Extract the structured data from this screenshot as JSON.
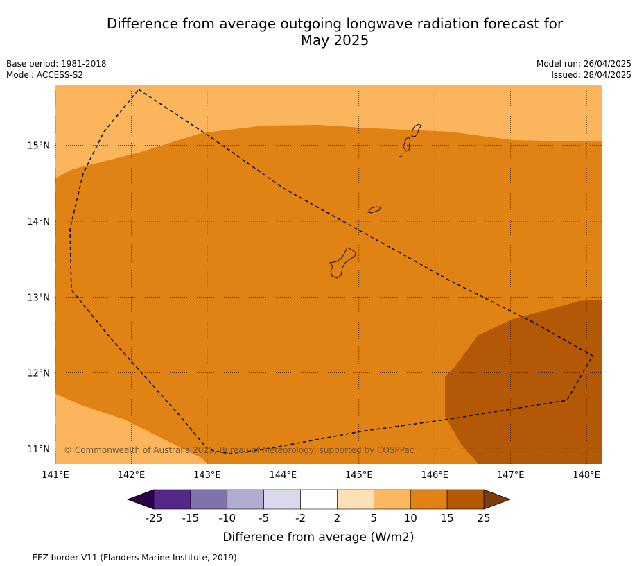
{
  "title_line1": "Difference from average outgoing longwave radiation forecast for",
  "title_line2": "May 2025",
  "base_period": "Base period: 1981-2018",
  "model": "Model: ACCESS-S2",
  "model_run": "Model run: 26/04/2025",
  "issued": "Issued: 28/04/2025",
  "copyright": "© Commonwealth of Australia 2025, Bureau of Meteorology, supported by COSPPac",
  "map": {
    "lon_range": [
      141,
      148.2
    ],
    "lat_range": [
      10.8,
      15.8
    ],
    "lon_ticks": [
      "141°E",
      "142°E",
      "143°E",
      "144°E",
      "145°E",
      "146°E",
      "147°E",
      "148°E"
    ],
    "lat_ticks": [
      "15°N",
      "14°N",
      "13°N",
      "12°N",
      "11°N"
    ],
    "gridlines": true,
    "colors": {
      "5_10": "#fbb55d",
      "10_15": "#e08214",
      "15_25": "#b35806"
    }
  },
  "colorbar": {
    "label": "Difference from average (W/m2)",
    "ticks": [
      "-25",
      "-15",
      "-10",
      "-5",
      "-2",
      "2",
      "5",
      "10",
      "15",
      "25"
    ],
    "colors": [
      "#542788",
      "#8073ac",
      "#b2abd2",
      "#d8daeb",
      "#ffffff",
      "#fee0b6",
      "#fdb863",
      "#e08214",
      "#b35806"
    ],
    "under_color": "#2d004b",
    "over_color": "#7f3b08"
  },
  "footer": "--  --  -- EEZ border V11 (Flanders Marine Institute, 2019)."
}
